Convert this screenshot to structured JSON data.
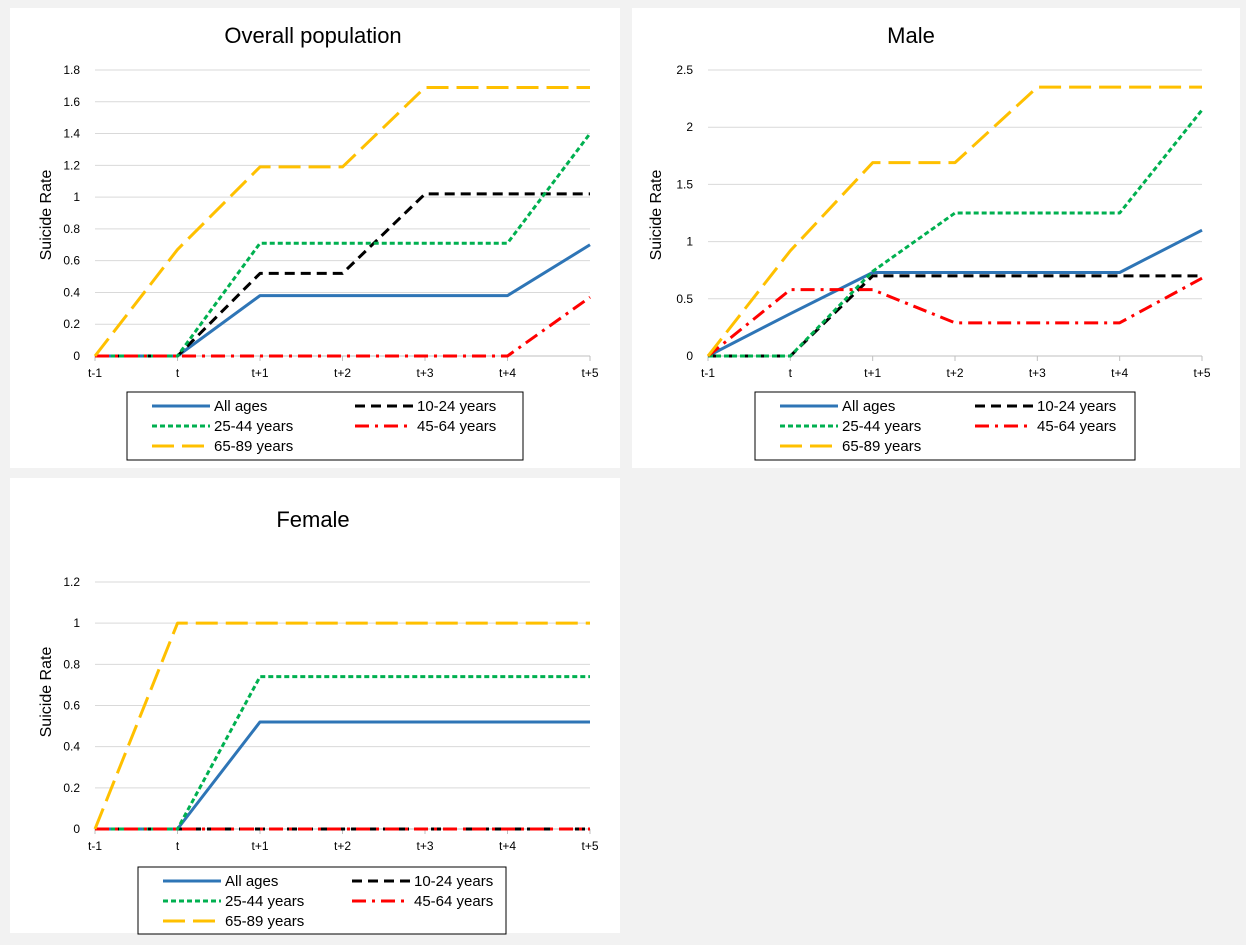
{
  "chart_data": [
    {
      "type": "line",
      "title": "Overall population",
      "ylabel": "Suicide Rate",
      "xlabel": "",
      "categories": [
        "t-1",
        "t",
        "t+1",
        "t+2",
        "t+3",
        "t+4",
        "t+5"
      ],
      "ylim": [
        0,
        1.8
      ],
      "yticks": [
        "0",
        "0.2",
        "0.4",
        "0.6",
        "0.8",
        "1",
        "1.2",
        "1.4",
        "1.6",
        "1.8"
      ],
      "grid": true,
      "legend": "bottom",
      "series": [
        {
          "name": "All ages",
          "color": "#2e75b6",
          "dash": "solid",
          "values": [
            0,
            0,
            0.38,
            0.38,
            0.38,
            0.38,
            0.7
          ]
        },
        {
          "name": "10-24 years",
          "color": "#000000",
          "dash": "dash",
          "values": [
            0,
            0,
            0.52,
            0.52,
            1.02,
            1.02,
            1.02
          ]
        },
        {
          "name": "25-44 years",
          "color": "#00b050",
          "dash": "sysdash",
          "values": [
            0,
            0,
            0.71,
            0.71,
            0.71,
            0.71,
            1.4
          ]
        },
        {
          "name": "45-64 years",
          "color": "#ff0000",
          "dash": "dashdot",
          "values": [
            0,
            0,
            0,
            0,
            0,
            0,
            0.37
          ]
        },
        {
          "name": "65-89 years",
          "color": "#ffc000",
          "dash": "longdash",
          "values": [
            0,
            0.67,
            1.19,
            1.19,
            1.69,
            1.69,
            1.69
          ]
        }
      ]
    },
    {
      "type": "line",
      "title": "Male",
      "ylabel": "Suicide Rate",
      "xlabel": "",
      "categories": [
        "t-1",
        "t",
        "t+1",
        "t+2",
        "t+3",
        "t+4",
        "t+5"
      ],
      "ylim": [
        0,
        2.5
      ],
      "yticks": [
        "0",
        "0.5",
        "1",
        "1.5",
        "2",
        "2.5"
      ],
      "grid": true,
      "legend": "bottom",
      "series": [
        {
          "name": "All ages",
          "color": "#2e75b6",
          "dash": "solid",
          "values": [
            0,
            0.37,
            0.73,
            0.73,
            0.73,
            0.73,
            1.1
          ]
        },
        {
          "name": "10-24 years",
          "color": "#000000",
          "dash": "dash",
          "values": [
            0,
            0,
            0.7,
            0.7,
            0.7,
            0.7,
            0.7
          ]
        },
        {
          "name": "25-44 years",
          "color": "#00b050",
          "dash": "sysdash",
          "values": [
            0,
            0,
            0.74,
            1.25,
            1.25,
            1.25,
            2.15
          ]
        },
        {
          "name": "45-64 years",
          "color": "#ff0000",
          "dash": "dashdot",
          "values": [
            0,
            0.58,
            0.58,
            0.29,
            0.29,
            0.29,
            0.68
          ]
        },
        {
          "name": "65-89 years",
          "color": "#ffc000",
          "dash": "longdash",
          "values": [
            0,
            0.92,
            1.69,
            1.69,
            2.35,
            2.35,
            2.35
          ]
        }
      ]
    },
    {
      "type": "line",
      "title": "Female",
      "ylabel": "Suicide Rate",
      "xlabel": "",
      "categories": [
        "t-1",
        "t",
        "t+1",
        "t+2",
        "t+3",
        "t+4",
        "t+5"
      ],
      "ylim": [
        0,
        1.2
      ],
      "yticks": [
        "0",
        "0.2",
        "0.4",
        "0.6",
        "0.8",
        "1",
        "1.2"
      ],
      "grid": true,
      "legend": "bottom",
      "series": [
        {
          "name": "All ages",
          "color": "#2e75b6",
          "dash": "solid",
          "values": [
            0,
            0,
            0.52,
            0.52,
            0.52,
            0.52,
            0.52
          ]
        },
        {
          "name": "10-24 years",
          "color": "#000000",
          "dash": "dash",
          "values": [
            0,
            0,
            0,
            0,
            0,
            0,
            0
          ]
        },
        {
          "name": "25-44 years",
          "color": "#00b050",
          "dash": "sysdash",
          "values": [
            0,
            0,
            0.74,
            0.74,
            0.74,
            0.74,
            0.74
          ]
        },
        {
          "name": "45-64 years",
          "color": "#ff0000",
          "dash": "dashdot",
          "values": [
            0,
            0,
            0,
            0,
            0,
            0,
            0
          ]
        },
        {
          "name": "65-89 years",
          "color": "#ffc000",
          "dash": "longdash",
          "values": [
            0,
            1,
            1,
            1,
            1,
            1,
            1
          ]
        }
      ]
    }
  ]
}
